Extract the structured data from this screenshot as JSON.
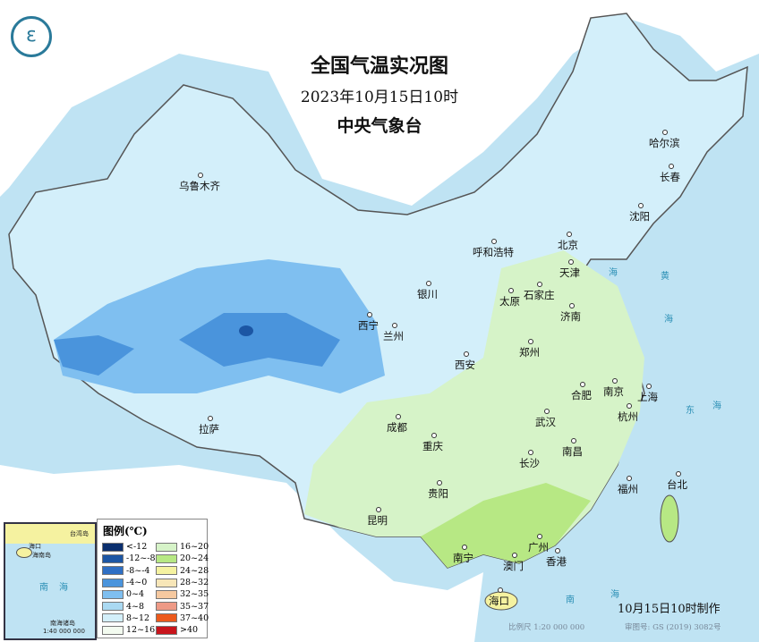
{
  "header": {
    "title": "全国气温实况图",
    "datetime": "2023年10月15日10时",
    "agency": "中央气象台"
  },
  "logo": "cma-logo",
  "cities": [
    "乌鲁木齐",
    "哈尔滨",
    "长春",
    "沈阳",
    "呼和浩特",
    "北京",
    "天津",
    "银川",
    "石家庄",
    "太原",
    "西宁",
    "兰州",
    "济南",
    "郑州",
    "西安",
    "合肥",
    "南京",
    "上海",
    "成都",
    "武汉",
    "杭州",
    "重庆",
    "拉萨",
    "南昌",
    "长沙",
    "福州",
    "台北",
    "贵阳",
    "昆明",
    "广州",
    "南宁",
    "澳门",
    "香港",
    "海口"
  ],
  "seas": [
    "海",
    "黄",
    "海",
    "东",
    "海",
    "南",
    "海"
  ],
  "legend": {
    "title": "图例(℃)",
    "items": [
      {
        "label": "<-12",
        "color": "#0b2f6e"
      },
      {
        "label": "-12~-8",
        "color": "#1c56a4"
      },
      {
        "label": "-8~-4",
        "color": "#2f6fc4"
      },
      {
        "label": "-4~0",
        "color": "#4a94dc"
      },
      {
        "label": "0~4",
        "color": "#7fbff0"
      },
      {
        "label": "4~8",
        "color": "#aad9f2"
      },
      {
        "label": "8~12",
        "color": "#d3effa"
      },
      {
        "label": "12~16",
        "color": "#f3fbf0"
      },
      {
        "label": "16~20",
        "color": "#d6f3c8"
      },
      {
        "label": "20~24",
        "color": "#b7e884"
      },
      {
        "label": "24~28",
        "color": "#f5f2a0"
      },
      {
        "label": "28~32",
        "color": "#f7e6b8"
      },
      {
        "label": "32~35",
        "color": "#f6c9a0"
      },
      {
        "label": "35~37",
        "color": "#ee9a86"
      },
      {
        "label": "37~40",
        "color": "#ec5a1c"
      },
      {
        "label": ">40",
        "color": "#c8141c"
      }
    ]
  },
  "inset": {
    "labels": [
      "台湾岛",
      "海口",
      "海南岛",
      "南",
      "海",
      "南海诸岛"
    ],
    "scale": "1:40 000 000"
  },
  "footer": {
    "made": "10月15日10时制作",
    "scale": "比例尺 1:20 000 000",
    "approval": "审图号: GS (2019) 3082号"
  }
}
